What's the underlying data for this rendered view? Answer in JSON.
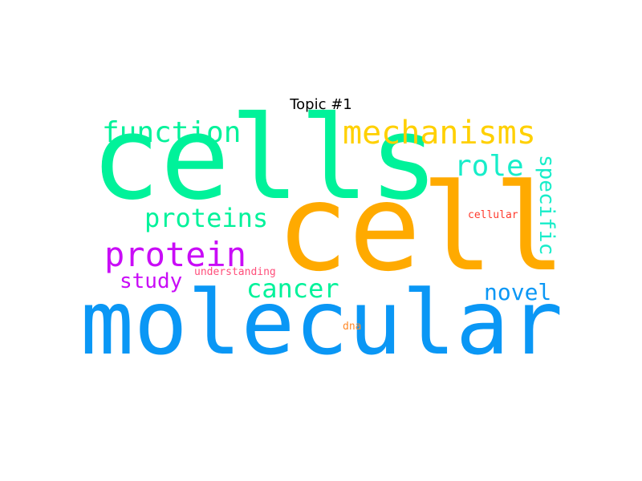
{
  "title": "Topic #1",
  "colors": {
    "teal_green": "#00F29A",
    "orange": "#FFAA00",
    "blue": "#0A97F5",
    "purple": "#C90CF7",
    "yellow": "#FFD000",
    "cyan": "#17EDC9",
    "red": "#FF3B2E",
    "pink": "#FF4F7B",
    "dna_orange": "#FF8A2A"
  },
  "words": {
    "cells": "cells",
    "cell": "cell",
    "molecular": "molecular",
    "mechanisms": "mechanisms",
    "function": "function",
    "role": "role",
    "specific": "specific",
    "proteins": "proteins",
    "protein": "protein",
    "cellular": "cellular",
    "study": "study",
    "cancer": "cancer",
    "understanding": "understanding",
    "novel": "novel",
    "dna": "dna"
  }
}
